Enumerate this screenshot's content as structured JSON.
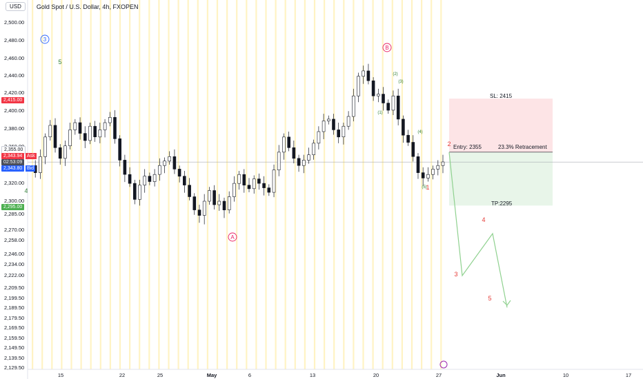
{
  "header": {
    "symbol_box": "USD",
    "title": "Gold Spot / U.S. Dollar, 4h, FXOPEN"
  },
  "price_badges": {
    "sl": "2,415.00",
    "sl_color": "#f23645",
    "entry": "2,355.00",
    "ask": "2,343.94",
    "ask_tag": "Ask",
    "timer": "02:53:09",
    "bid": "2,343.80",
    "bid_tag": "Bid",
    "tp": "2,295.00",
    "tp_color": "#4caf50"
  },
  "trade": {
    "sl_label": "SL: 2415",
    "entry_label": "Entry: 2355",
    "retracement_label": "23.3% Retracement",
    "tp_label": "TP:2295"
  },
  "chart_data": {
    "type": "candlestick",
    "title": "Gold Spot / U.S. Dollar, 4h, FXOPEN",
    "xlabel": "",
    "ylabel": "",
    "y_ticks": [
      "2,500.00",
      "2,480.00",
      "2,460.00",
      "2,440.00",
      "2,420.00",
      "2,400.00",
      "2,380.00",
      "2,360.00",
      "2,340.00",
      "2,320.00",
      "2,300.00",
      "2,285.00",
      "2,270.00",
      "2,258.00",
      "2,246.00",
      "2,234.00",
      "2,222.00",
      "2,209.50",
      "2,199.50",
      "2,189.50",
      "2,179.50",
      "2,169.50",
      "2,159.50",
      "2,149.50",
      "2,139.50",
      "2,129.50"
    ],
    "x_ticks": [
      {
        "label": "15",
        "bold": false
      },
      {
        "label": "22",
        "bold": false
      },
      {
        "label": "25",
        "bold": false
      },
      {
        "label": "May",
        "bold": true
      },
      {
        "label": "6",
        "bold": false
      },
      {
        "label": "13",
        "bold": false
      },
      {
        "label": "20",
        "bold": false
      },
      {
        "label": "27",
        "bold": false
      },
      {
        "label": "Jun",
        "bold": true
      },
      {
        "label": "10",
        "bold": false
      },
      {
        "label": "17",
        "bold": false
      }
    ],
    "price_path": [
      2340,
      2332,
      2350,
      2372,
      2385,
      2360,
      2348,
      2362,
      2380,
      2388,
      2376,
      2368,
      2384,
      2372,
      2380,
      2388,
      2394,
      2370,
      2346,
      2330,
      2320,
      2302,
      2318,
      2328,
      2322,
      2330,
      2340,
      2345,
      2350,
      2336,
      2328,
      2318,
      2305,
      2290,
      2284,
      2300,
      2312,
      2296,
      2300,
      2290,
      2305,
      2320,
      2330,
      2318,
      2314,
      2325,
      2320,
      2315,
      2310,
      2335,
      2355,
      2372,
      2360,
      2348,
      2340,
      2346,
      2352,
      2365,
      2378,
      2390,
      2392,
      2380,
      2372,
      2384,
      2395,
      2418,
      2440,
      2446,
      2435,
      2418,
      2420,
      2410,
      2402,
      2418,
      2392,
      2374,
      2366,
      2350,
      2332,
      2326,
      2330,
      2336,
      2340,
      2344
    ],
    "forecast_path": [
      2355,
      2222,
      2266,
      2190
    ],
    "current_price": 2343.9,
    "stop_loss": 2415,
    "entry": 2355,
    "take_profit": 2295,
    "retracement_pct": "23.3% Retracement",
    "wave_labels": [
      {
        "text": "3",
        "color": "#2962ff",
        "circled": true
      },
      {
        "text": "5",
        "color": "#2e7d32",
        "circled": false
      },
      {
        "text": "4",
        "color": "#2e7d32",
        "circled": false
      },
      {
        "text": "A",
        "color": "#e91e63",
        "circled": true
      },
      {
        "text": "B",
        "color": "#e91e63",
        "circled": true
      },
      {
        "text": "(1)",
        "color": "#2e7d32",
        "circled": false
      },
      {
        "text": "(2)",
        "color": "#2e7d32",
        "circled": false
      },
      {
        "text": "(3)",
        "color": "#2e7d32",
        "circled": false
      },
      {
        "text": "(4)",
        "color": "#2e7d32",
        "circled": false
      },
      {
        "text": "(5)",
        "color": "#2e7d32",
        "circled": false
      },
      {
        "text": "1",
        "color": "#e53935",
        "circled": false
      },
      {
        "text": "2",
        "color": "#e53935",
        "circled": false
      },
      {
        "text": "3",
        "color": "#e53935",
        "circled": false
      },
      {
        "text": "4",
        "color": "#e53935",
        "circled": false
      },
      {
        "text": "5",
        "color": "#e53935",
        "circled": false
      }
    ],
    "colors": {
      "up": "#131722",
      "down": "#131722",
      "forecast_line": "#8fd18f",
      "sl_zone": "#fde4e6",
      "tp_zone": "#e8f5e9",
      "vertical_stripes": "#fff3c4"
    }
  }
}
